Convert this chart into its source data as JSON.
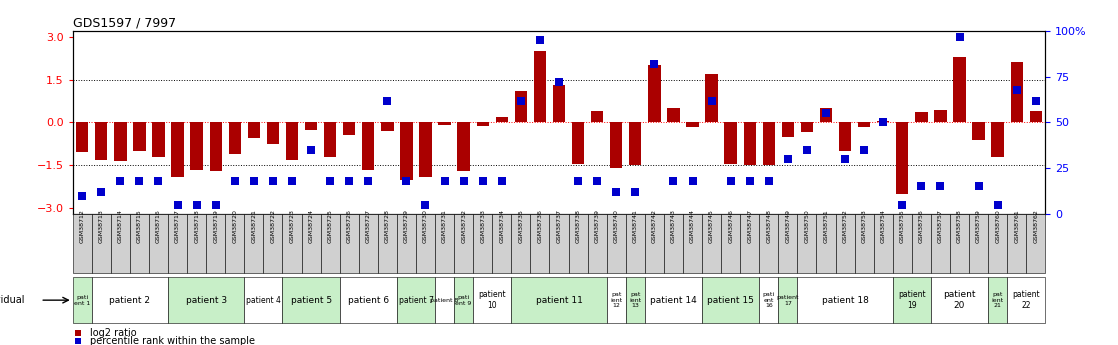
{
  "title": "GDS1597 / 7997",
  "gsm_labels": [
    "GSM38712",
    "GSM38713",
    "GSM38714",
    "GSM38715",
    "GSM38716",
    "GSM38717",
    "GSM38718",
    "GSM38719",
    "GSM38720",
    "GSM38721",
    "GSM38722",
    "GSM38723",
    "GSM38724",
    "GSM38725",
    "GSM38726",
    "GSM38727",
    "GSM38728",
    "GSM38729",
    "GSM38730",
    "GSM38731",
    "GSM38732",
    "GSM38733",
    "GSM38734",
    "GSM38735",
    "GSM38736",
    "GSM38737",
    "GSM38738",
    "GSM38739",
    "GSM38740",
    "GSM38741",
    "GSM38742",
    "GSM38743",
    "GSM38744",
    "GSM38745",
    "GSM38746",
    "GSM38747",
    "GSM38748",
    "GSM38749",
    "GSM38750",
    "GSM38751",
    "GSM38752",
    "GSM38753",
    "GSM38754",
    "GSM38755",
    "GSM38756",
    "GSM38757",
    "GSM38758",
    "GSM38759",
    "GSM38760",
    "GSM38761",
    "GSM38762"
  ],
  "log2_ratio": [
    -1.05,
    -1.3,
    -1.35,
    -1.0,
    -1.2,
    -1.9,
    -1.65,
    -1.7,
    -1.1,
    -0.55,
    -0.75,
    -1.3,
    -0.25,
    -1.2,
    -0.45,
    -1.65,
    -0.3,
    -2.0,
    -1.9,
    -0.1,
    -1.7,
    -0.12,
    0.2,
    1.1,
    2.5,
    1.3,
    -1.45,
    0.4,
    -1.6,
    -1.5,
    2.0,
    0.5,
    -0.15,
    1.7,
    -1.45,
    -1.5,
    -1.5,
    -0.5,
    -0.35,
    0.5,
    -1.0,
    -0.15,
    0.05,
    -2.5,
    0.35,
    0.45,
    2.3,
    -0.6,
    -1.2,
    2.1,
    0.4
  ],
  "percentile": [
    10,
    12,
    18,
    18,
    18,
    5,
    5,
    5,
    18,
    18,
    18,
    18,
    35,
    18,
    18,
    18,
    62,
    18,
    5,
    18,
    18,
    18,
    18,
    62,
    95,
    72,
    18,
    18,
    12,
    12,
    82,
    18,
    18,
    62,
    18,
    18,
    18,
    30,
    35,
    55,
    30,
    35,
    50,
    5,
    15,
    15,
    97,
    15,
    5,
    68,
    62
  ],
  "patient_groups": [
    {
      "label": "pati\nent 1",
      "start": 0,
      "end": 1,
      "color": "#c8efc8"
    },
    {
      "label": "patient 2",
      "start": 1,
      "end": 5,
      "color": "#ffffff"
    },
    {
      "label": "patient 3",
      "start": 5,
      "end": 9,
      "color": "#c8efc8"
    },
    {
      "label": "patient 4",
      "start": 9,
      "end": 11,
      "color": "#ffffff"
    },
    {
      "label": "patient 5",
      "start": 11,
      "end": 14,
      "color": "#c8efc8"
    },
    {
      "label": "patient 6",
      "start": 14,
      "end": 17,
      "color": "#ffffff"
    },
    {
      "label": "patient 7",
      "start": 17,
      "end": 19,
      "color": "#c8efc8"
    },
    {
      "label": "patient 8",
      "start": 19,
      "end": 20,
      "color": "#ffffff"
    },
    {
      "label": "pati\nent 9",
      "start": 20,
      "end": 21,
      "color": "#c8efc8"
    },
    {
      "label": "patient\n10",
      "start": 21,
      "end": 23,
      "color": "#ffffff"
    },
    {
      "label": "patient 11",
      "start": 23,
      "end": 28,
      "color": "#c8efc8"
    },
    {
      "label": "pat\nient\n12",
      "start": 28,
      "end": 29,
      "color": "#ffffff"
    },
    {
      "label": "pat\nient\n13",
      "start": 29,
      "end": 30,
      "color": "#c8efc8"
    },
    {
      "label": "patient 14",
      "start": 30,
      "end": 33,
      "color": "#ffffff"
    },
    {
      "label": "patient 15",
      "start": 33,
      "end": 36,
      "color": "#c8efc8"
    },
    {
      "label": "pati\nent\n16",
      "start": 36,
      "end": 37,
      "color": "#ffffff"
    },
    {
      "label": "patient\n17",
      "start": 37,
      "end": 38,
      "color": "#c8efc8"
    },
    {
      "label": "patient 18",
      "start": 38,
      "end": 43,
      "color": "#ffffff"
    },
    {
      "label": "patient\n19",
      "start": 43,
      "end": 45,
      "color": "#c8efc8"
    },
    {
      "label": "patient\n20",
      "start": 45,
      "end": 48,
      "color": "#ffffff"
    },
    {
      "label": "pat\nient\n21",
      "start": 48,
      "end": 49,
      "color": "#c8efc8"
    },
    {
      "label": "patient\n22",
      "start": 49,
      "end": 51,
      "color": "#ffffff"
    }
  ],
  "ylim": [
    -3.2,
    3.2
  ],
  "yticks_left": [
    -3,
    -1.5,
    0,
    1.5,
    3
  ],
  "yticks_right": [
    0,
    25,
    50,
    75,
    100
  ],
  "bar_color": "#aa0000",
  "dot_color": "#0000cc",
  "bar_width": 0.65,
  "dot_size": 28,
  "gsm_cell_color": "#d0d0d0",
  "background_color": "#ffffff"
}
